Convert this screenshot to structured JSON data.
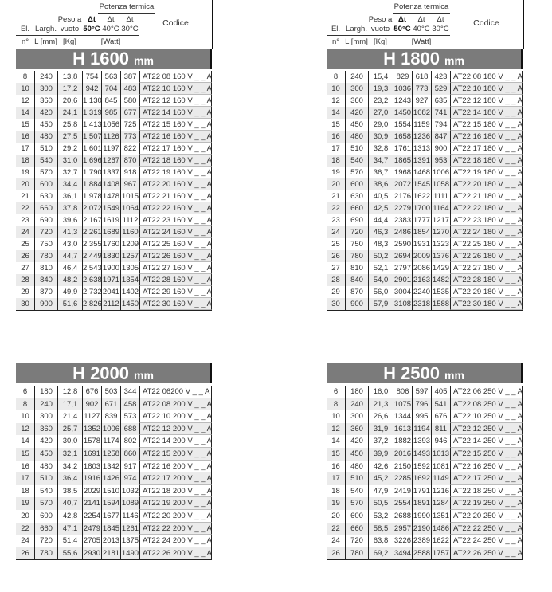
{
  "header": {
    "potenza": "Potenza termica",
    "el": "El.",
    "largh": "Largh.",
    "peso1": "Peso a",
    "peso2": "vuoto",
    "dt": "Δt",
    "t50": "50°C",
    "t40": "40°C",
    "t30": "30°C",
    "codice": "Codice",
    "n": "n°",
    "l": "L [mm]",
    "kg": "[Kg]",
    "watt": "[Watt]"
  },
  "colors": {
    "banner": "#7b7b7b",
    "alt_row": "#ebebeb"
  },
  "tables": [
    {
      "title": "H 1600",
      "unit": "mm",
      "rows": [
        [
          "8",
          "240",
          "13,8",
          "754",
          "563",
          "387",
          "AT22 08 160 V _ _ A"
        ],
        [
          "10",
          "300",
          "17,2",
          "942",
          "704",
          "483",
          "AT22 10 160 V _ _ A"
        ],
        [
          "12",
          "360",
          "20,6",
          "1.130",
          "845",
          "580",
          "AT22 12 160 V _ _ A"
        ],
        [
          "14",
          "420",
          "24,1",
          "1.319",
          "985",
          "677",
          "AT22 14 160 V _ _ A"
        ],
        [
          "15",
          "450",
          "25,8",
          "1.413",
          "1056",
          "725",
          "AT22 15 160 V _ _ A"
        ],
        [
          "16",
          "480",
          "27,5",
          "1.507",
          "1126",
          "773",
          "AT22 16 160 V _ _ A"
        ],
        [
          "17",
          "510",
          "29,2",
          "1.601",
          "1197",
          "822",
          "AT22 17 160 V _ _ A"
        ],
        [
          "18",
          "540",
          "31,0",
          "1.696",
          "1267",
          "870",
          "AT22 18 160 V _ _ A"
        ],
        [
          "19",
          "570",
          "32,7",
          "1.790",
          "1337",
          "918",
          "AT22 19 160 V _ _ A"
        ],
        [
          "20",
          "600",
          "34,4",
          "1.884",
          "1408",
          "967",
          "AT22 20 160 V _ _ A"
        ],
        [
          "21",
          "630",
          "36,1",
          "1.978",
          "1478",
          "1015",
          "AT22 21 160 V _ _ A"
        ],
        [
          "22",
          "660",
          "37,8",
          "2.072",
          "1549",
          "1064",
          "AT22 22 160 V _ _ A"
        ],
        [
          "23",
          "690",
          "39,6",
          "2.167",
          "1619",
          "1112",
          "AT22 23 160 V _ _ A"
        ],
        [
          "24",
          "720",
          "41,3",
          "2.261",
          "1689",
          "1160",
          "AT22 24 160 V _ _ A"
        ],
        [
          "25",
          "750",
          "43,0",
          "2.355",
          "1760",
          "1209",
          "AT22 25 160 V _ _ A"
        ],
        [
          "26",
          "780",
          "44,7",
          "2.449",
          "1830",
          "1257",
          "AT22 26 160 V _ _ A"
        ],
        [
          "27",
          "810",
          "46,4",
          "2.543",
          "1900",
          "1305",
          "AT22 27 160 V _ _ A"
        ],
        [
          "28",
          "840",
          "48,2",
          "2.638",
          "1971",
          "1354",
          "AT22 28 160 V _ _ A"
        ],
        [
          "29",
          "870",
          "49,9",
          "2.732",
          "2041",
          "1402",
          "AT22 29 160 V _ _ A"
        ],
        [
          "30",
          "900",
          "51,6",
          "2.826",
          "2112",
          "1450",
          "AT22 30 160 V _ _ A"
        ]
      ]
    },
    {
      "title": "H 1800",
      "unit": "mm",
      "rows": [
        [
          "8",
          "240",
          "15,4",
          "829",
          "618",
          "423",
          "AT22 08 180 V _ _ A"
        ],
        [
          "10",
          "300",
          "19,3",
          "1036",
          "773",
          "529",
          "AT22 10 180 V _ _ A"
        ],
        [
          "12",
          "360",
          "23,2",
          "1243",
          "927",
          "635",
          "AT22 12 180 V _ _ A"
        ],
        [
          "14",
          "420",
          "27,0",
          "1450",
          "1082",
          "741",
          "AT22 14 180 V _ _ A"
        ],
        [
          "15",
          "450",
          "29,0",
          "1554",
          "1159",
          "794",
          "AT22 15 180 V _ _ A"
        ],
        [
          "16",
          "480",
          "30,9",
          "1658",
          "1236",
          "847",
          "AT22 16 180 V _ _ A"
        ],
        [
          "17",
          "510",
          "32,8",
          "1761",
          "1313",
          "900",
          "AT22 17 180 V _ _ A"
        ],
        [
          "18",
          "540",
          "34,7",
          "1865",
          "1391",
          "953",
          "AT22 18 180 V _ _ A"
        ],
        [
          "19",
          "570",
          "36,7",
          "1968",
          "1468",
          "1006",
          "AT22 19 180 V _ _ A"
        ],
        [
          "20",
          "600",
          "38,6",
          "2072",
          "1545",
          "1058",
          "AT22 20 180 V _ _ A"
        ],
        [
          "21",
          "630",
          "40,5",
          "2176",
          "1622",
          "1111",
          "AT22 21 180 V _ _ A"
        ],
        [
          "22",
          "660",
          "42,5",
          "2279",
          "1700",
          "1164",
          "AT22 22 180 V _ _ A"
        ],
        [
          "23",
          "690",
          "44,4",
          "2383",
          "1777",
          "1217",
          "AT22 23 180 V _ _ A"
        ],
        [
          "24",
          "720",
          "46,3",
          "2486",
          "1854",
          "1270",
          "AT22 24 180 V _ _ A"
        ],
        [
          "25",
          "750",
          "48,3",
          "2590",
          "1931",
          "1323",
          "AT22 25 180 V _ _ A"
        ],
        [
          "26",
          "780",
          "50,2",
          "2694",
          "2009",
          "1376",
          "AT22 26 180 V _ _ A"
        ],
        [
          "27",
          "810",
          "52,1",
          "2797",
          "2086",
          "1429",
          "AT22 27 180 V _ _ A"
        ],
        [
          "28",
          "840",
          "54,0",
          "2901",
          "2163",
          "1482",
          "AT22 28 180 V _ _ A"
        ],
        [
          "29",
          "870",
          "56,0",
          "3004",
          "2240",
          "1535",
          "AT22 29 180 V _ _ A"
        ],
        [
          "30",
          "900",
          "57,9",
          "3108",
          "2318",
          "1588",
          "AT22 30 180 V _ _ A"
        ]
      ]
    },
    {
      "title": "H 2000",
      "unit": "mm",
      "rows": [
        [
          "6",
          "180",
          "12,8",
          "676",
          "503",
          "344",
          "AT22 06200 V _ _ A"
        ],
        [
          "8",
          "240",
          "17,1",
          "902",
          "671",
          "458",
          "AT22 08 200 V _ _ A"
        ],
        [
          "10",
          "300",
          "21,4",
          "1127",
          "839",
          "573",
          "AT22 10 200 V _ _ A"
        ],
        [
          "12",
          "360",
          "25,7",
          "1352",
          "1006",
          "688",
          "AT22 12 200 V _ _ A"
        ],
        [
          "14",
          "420",
          "30,0",
          "1578",
          "1174",
          "802",
          "AT22 14 200 V _ _ A"
        ],
        [
          "15",
          "450",
          "32,1",
          "1691",
          "1258",
          "860",
          "AT22 15 200 V _ _ A"
        ],
        [
          "16",
          "480",
          "34,2",
          "1803",
          "1342",
          "917",
          "AT22 16 200 V _ _ A"
        ],
        [
          "17",
          "510",
          "36,4",
          "1916",
          "1426",
          "974",
          "AT22 17 200 V _ _ A"
        ],
        [
          "18",
          "540",
          "38,5",
          "2029",
          "1510",
          "1032",
          "AT22 18 200 V _ _ A"
        ],
        [
          "19",
          "570",
          "40,7",
          "2141",
          "1594",
          "1089",
          "AT22 19 200 V _ _ A"
        ],
        [
          "20",
          "600",
          "42,8",
          "2254",
          "1677",
          "1146",
          "AT22 20 200 V _ _ A"
        ],
        [
          "22",
          "660",
          "47,1",
          "2479",
          "1845",
          "1261",
          "AT22 22 200 V _ _ A"
        ],
        [
          "24",
          "720",
          "51,4",
          "2705",
          "2013",
          "1375",
          "AT22 24 200 V _ _ A"
        ],
        [
          "26",
          "780",
          "55,6",
          "2930",
          "2181",
          "1490",
          "AT22 26 200 V _ _ A"
        ]
      ]
    },
    {
      "title": "H 2500",
      "unit": "mm",
      "rows": [
        [
          "6",
          "180",
          "16,0",
          "806",
          "597",
          "405",
          "AT22 06 250 V _ _ A"
        ],
        [
          "8",
          "240",
          "21,3",
          "1075",
          "796",
          "541",
          "AT22 08 250 V _ _ A"
        ],
        [
          "10",
          "300",
          "26,6",
          "1344",
          "995",
          "676",
          "AT22 10 250 V _ _ A"
        ],
        [
          "12",
          "360",
          "31,9",
          "1613",
          "1194",
          "811",
          "AT22 12 250 V _ _ A"
        ],
        [
          "14",
          "420",
          "37,2",
          "1882",
          "1393",
          "946",
          "AT22 14 250 V _ _ A"
        ],
        [
          "15",
          "450",
          "39,9",
          "2016",
          "1493",
          "1013",
          "AT22 15 250 V _ _ A"
        ],
        [
          "16",
          "480",
          "42,6",
          "2150",
          "1592",
          "1081",
          "AT22 16 250 V _ _ A"
        ],
        [
          "17",
          "510",
          "45,2",
          "2285",
          "1692",
          "1149",
          "AT22 17 250 V _ _ A"
        ],
        [
          "18",
          "540",
          "47,9",
          "2419",
          "1791",
          "1216",
          "AT22 18 250 V _ _ A"
        ],
        [
          "19",
          "570",
          "50,5",
          "2554",
          "1891",
          "1284",
          "AT22 19 250 V _ _ A"
        ],
        [
          "20",
          "600",
          "53,2",
          "2688",
          "1990",
          "1351",
          "AT22 20 250 V _ _ A"
        ],
        [
          "22",
          "660",
          "58,5",
          "2957",
          "2190",
          "1486",
          "AT22 22 250 V _ _ A"
        ],
        [
          "24",
          "720",
          "63,8",
          "3226",
          "2389",
          "1622",
          "AT22 24 250 V _ _ A"
        ],
        [
          "26",
          "780",
          "69,2",
          "3494",
          "2588",
          "1757",
          "AT22 26 250 V _ _ A"
        ]
      ]
    }
  ]
}
